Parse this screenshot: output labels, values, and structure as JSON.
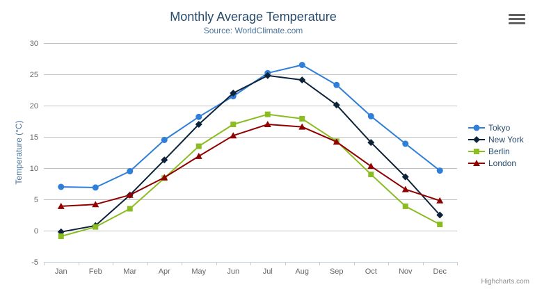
{
  "chart_data": {
    "type": "line",
    "title": "Monthly Average Temperature",
    "subtitle": "Source: WorldClimate.com",
    "categories": [
      "Jan",
      "Feb",
      "Mar",
      "Apr",
      "May",
      "Jun",
      "Jul",
      "Aug",
      "Sep",
      "Oct",
      "Nov",
      "Dec"
    ],
    "xlabel": "",
    "ylabel": "Temperature (°C)",
    "ylim": [
      -5,
      30
    ],
    "ytick_interval": 5,
    "yticks": [
      -5,
      0,
      5,
      10,
      15,
      20,
      25,
      30
    ],
    "grid": true,
    "legend_position": "right-middle",
    "series": [
      {
        "name": "Tokyo",
        "color": "#2f7ed8",
        "marker": "circle",
        "values": [
          7.0,
          6.9,
          9.5,
          14.5,
          18.2,
          21.5,
          25.2,
          26.5,
          23.3,
          18.3,
          13.9,
          9.6
        ]
      },
      {
        "name": "New York",
        "color": "#0d233a",
        "marker": "diamond",
        "values": [
          -0.2,
          0.8,
          5.7,
          11.3,
          17.0,
          22.0,
          24.8,
          24.1,
          20.1,
          14.1,
          8.6,
          2.5
        ]
      },
      {
        "name": "Berlin",
        "color": "#8bbc21",
        "marker": "square",
        "values": [
          -0.9,
          0.6,
          3.5,
          8.4,
          13.5,
          17.0,
          18.6,
          17.9,
          14.3,
          9.0,
          3.9,
          1.0
        ]
      },
      {
        "name": "London",
        "color": "#910000",
        "marker": "triangle",
        "values": [
          3.9,
          4.2,
          5.7,
          8.5,
          11.9,
          15.2,
          17.0,
          16.6,
          14.2,
          10.3,
          6.6,
          4.8
        ]
      }
    ]
  },
  "credits": {
    "label": "Highcharts.com"
  },
  "icons": {
    "context_menu": "hamburger-menu-icon"
  },
  "colors": {
    "title": "#274b6d",
    "subtitle": "#4d759e",
    "axis_label": "#666666",
    "axis_title": "#4d759e",
    "gridline": "#c0c0c0",
    "x_axis_line": "#c0d0e0",
    "legend_text": "#274b6d",
    "credits": "#909090",
    "context_icon": "#616161"
  }
}
